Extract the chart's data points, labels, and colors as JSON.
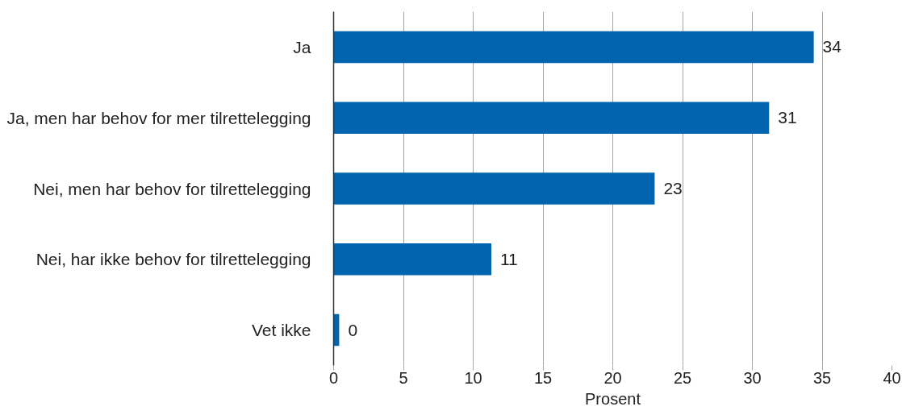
{
  "chart_data": {
    "type": "bar",
    "orientation": "horizontal",
    "categories": [
      "Ja",
      "Ja, men har behov for mer tilrettelegging",
      "Nei, men har behov for tilrettelegging",
      "Nei, har ikke behov for tilrettelegging",
      "Vet ikke"
    ],
    "values": [
      34.4,
      31.2,
      23.0,
      11.3,
      0.4
    ],
    "value_labels": [
      "34",
      "31",
      "23",
      "11",
      "0"
    ],
    "color": "#0064af",
    "xlim": [
      0,
      40
    ],
    "xticks": [
      0,
      5,
      10,
      15,
      20,
      25,
      30,
      35,
      40
    ],
    "xlabel": "Prosent",
    "grid": "x"
  }
}
